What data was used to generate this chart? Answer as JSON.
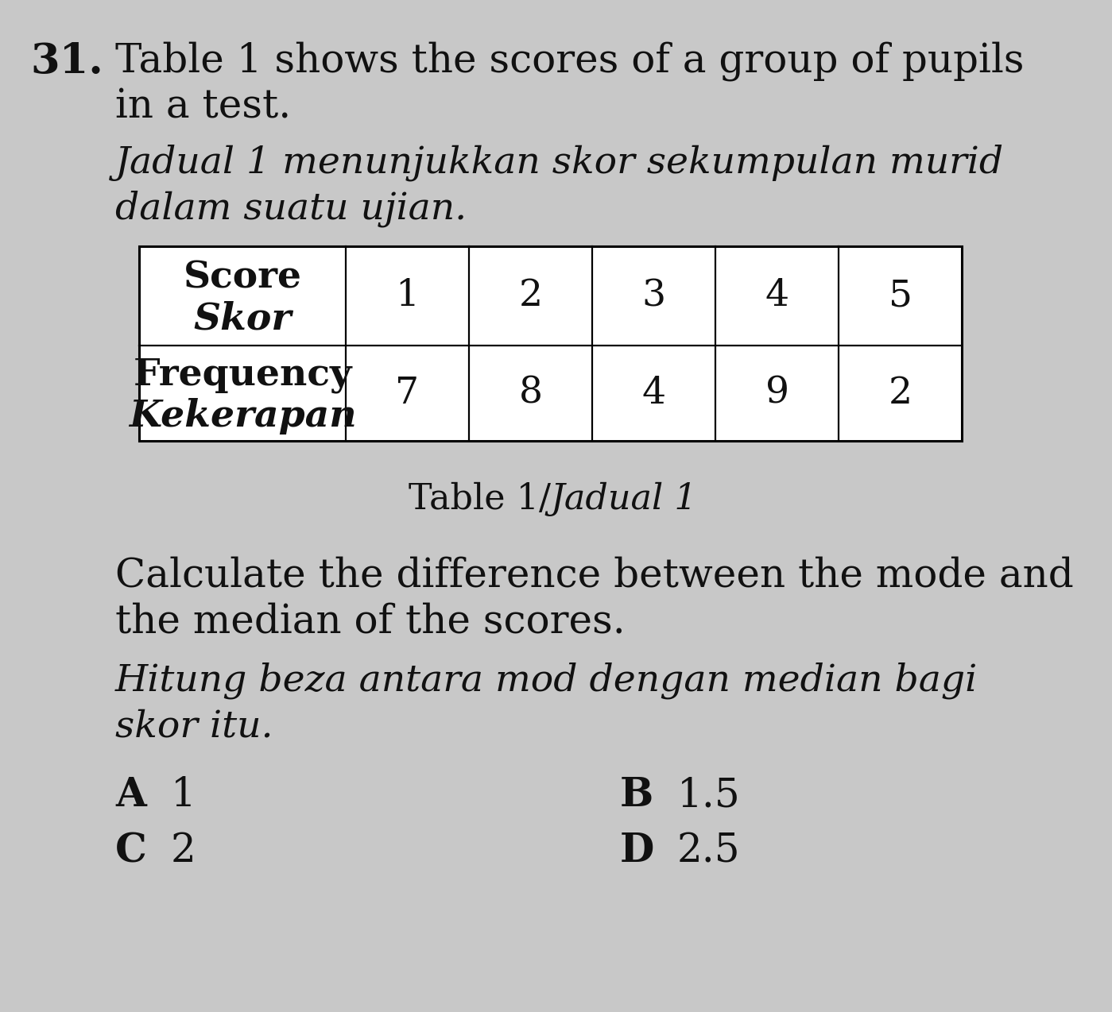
{
  "question_number": "31.",
  "text_line1": "Table 1 shows the scores of a group of pupils",
  "text_line2": "in a test.",
  "text_line3_italic": "Jadual 1 menunjukkan skor sekumpulan murid",
  "text_line4_italic": "dalam suatu ujian.",
  "scores": [
    "1",
    "2",
    "3",
    "4",
    "5"
  ],
  "frequencies": [
    "7",
    "8",
    "4",
    "9",
    "2"
  ],
  "table_caption_normal": "Table 1/",
  "table_caption_italic": "Jadual 1",
  "question_text_line1": "Calculate the difference between the mode and",
  "question_text_line2": "the median of the scores.",
  "question_text_italic1": "Hitung beza antara mod dengan median bagi",
  "question_text_italic2": "skor itu.",
  "opt_A_letter": "A",
  "opt_A_val": "1",
  "opt_B_letter": "B",
  "opt_B_val": "1.5",
  "opt_C_letter": "C",
  "opt_C_val": "2",
  "opt_D_letter": "D",
  "opt_D_val": "2.5",
  "bg_color": "#c8c8c8",
  "text_color": "#111111",
  "table_fill": "#ffffff",
  "fs_main": 36,
  "fs_italic": 34,
  "fs_number": 38,
  "fs_table_label": 34,
  "fs_table_val": 34,
  "fs_caption": 32,
  "fs_option_letter": 36,
  "fs_option_val": 36
}
